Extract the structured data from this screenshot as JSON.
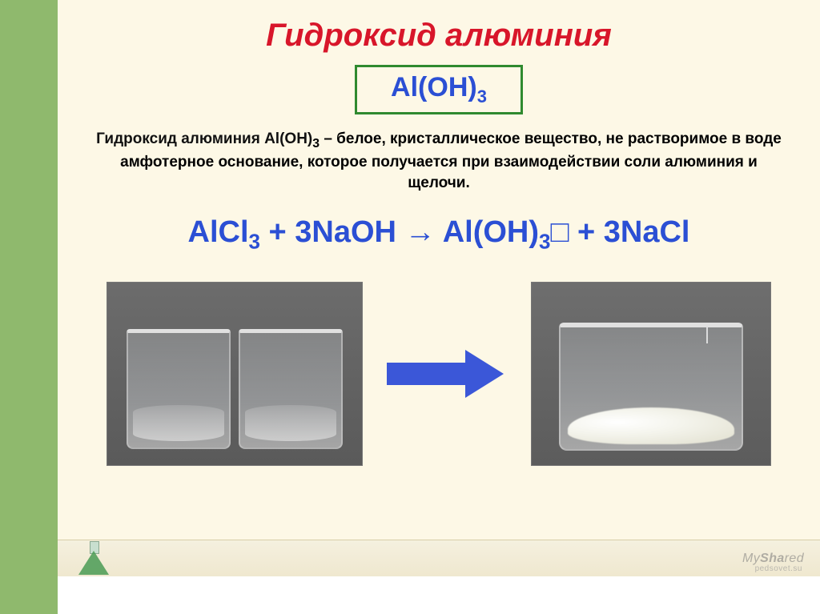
{
  "colors": {
    "sidebar": "#8fb96d",
    "slide_bg": "#fdf8e6",
    "title": "#d8162a",
    "formula": "#2b4fd4",
    "formula_border": "#2f8a2f",
    "body_text": "#111111",
    "arrow": "#3b57d8",
    "photo_bg": "#626262",
    "precipitate": "#f4f4ec"
  },
  "title": "Гидроксид алюминия",
  "main_formula": {
    "base": "Al(OH)",
    "sub": "3"
  },
  "description": {
    "lead": "Гидроксид алюминия Al(OH)",
    "lead_sub": "3",
    "rest": " – белое, кристаллическое вещество, не растворимое в воде амфотерное основание, которое получается при взаимодействии соли алюминия и щелочи."
  },
  "equation": {
    "r1": "AlCl",
    "r1sub": "3",
    "plus1": " + 3NaOH ",
    "arrow": "→",
    "p1": " Al(OH)",
    "p1sub": "3",
    "precip": "□",
    "plus2": " + 3NaCl"
  },
  "watermark": {
    "brand_my": "My",
    "brand_sha": "Sha",
    "brand_red": "red",
    "sub": "pedsovet.su"
  }
}
